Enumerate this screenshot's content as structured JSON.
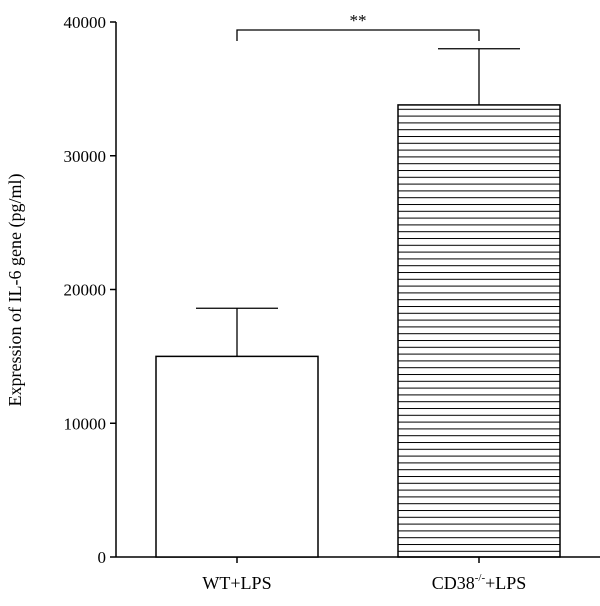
{
  "chart_data": {
    "type": "bar",
    "title": "",
    "xlabel": "",
    "ylabel": "Expression of IL-6 gene (pg/ml)",
    "ylim": [
      0,
      40000
    ],
    "yticks": [
      0,
      10000,
      20000,
      30000,
      40000
    ],
    "ytick_labels": [
      "0",
      "10000",
      "20000",
      "30000",
      "40000"
    ],
    "categories": [
      {
        "label_main": "WT+LPS",
        "label_prefix": "",
        "label_sup": "",
        "label_suffix": ""
      },
      {
        "label_main": "",
        "label_prefix": "CD38",
        "label_sup": "-/-",
        "label_suffix": "+LPS"
      }
    ],
    "values": [
      15000,
      33800
    ],
    "error_upper": [
      18600,
      38000
    ],
    "fills": [
      "plain",
      "horizontal-stripes"
    ],
    "significance": {
      "from": 0,
      "to": 1,
      "label": "**"
    },
    "colors": {
      "stroke": "#000000",
      "fill": "#ffffff"
    },
    "grid": false
  }
}
